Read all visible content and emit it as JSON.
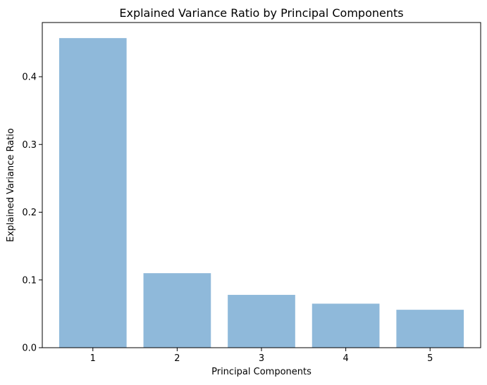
{
  "chart_data": {
    "type": "bar",
    "title": "Explained Variance Ratio by Principal Components",
    "xlabel": "Principal Components",
    "ylabel": "Explained Variance Ratio",
    "categories": [
      "1",
      "2",
      "3",
      "4",
      "5"
    ],
    "values": [
      0.457,
      0.11,
      0.078,
      0.065,
      0.056
    ],
    "ylim": [
      0,
      0.48
    ],
    "yticks": [
      0.0,
      0.1,
      0.2,
      0.3,
      0.4
    ],
    "ytick_labels": [
      "0.0",
      "0.1",
      "0.2",
      "0.3",
      "0.4"
    ],
    "grid": false,
    "bar_color": "#8fb9da"
  }
}
